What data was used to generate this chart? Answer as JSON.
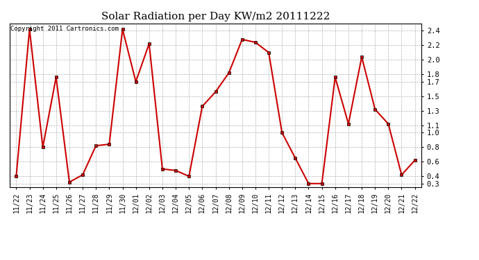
{
  "title": "Solar Radiation per Day KW/m2 20111222",
  "copyright": "Copyright 2011 Cartronics.com",
  "labels": [
    "11/22",
    "11/23",
    "11/24",
    "11/25",
    "11/26",
    "11/27",
    "11/28",
    "11/29",
    "11/30",
    "12/01",
    "12/02",
    "12/03",
    "12/04",
    "12/05",
    "12/06",
    "12/07",
    "12/08",
    "12/09",
    "12/10",
    "12/11",
    "12/12",
    "12/13",
    "12/14",
    "12/15",
    "12/16",
    "12/17",
    "12/18",
    "12/19",
    "12/20",
    "12/21",
    "12/22"
  ],
  "values": [
    0.4,
    2.42,
    0.8,
    1.76,
    0.32,
    0.42,
    0.82,
    0.84,
    2.42,
    1.7,
    2.22,
    0.5,
    0.48,
    0.4,
    1.36,
    1.56,
    1.82,
    2.28,
    2.24,
    2.1,
    1.0,
    0.65,
    0.3,
    0.3,
    1.76,
    1.12,
    2.04,
    1.32,
    1.12,
    0.42,
    0.62
  ],
  "line_color": "#cc0000",
  "marker": "s",
  "marker_size": 2.5,
  "line_width": 1.5,
  "bg_color": "#ffffff",
  "plot_bg_color": "#ffffff",
  "grid_color": "#b0b0b0",
  "yticks": [
    0.3,
    0.4,
    0.6,
    0.8,
    1.0,
    1.1,
    1.3,
    1.5,
    1.7,
    1.8,
    2.0,
    2.2,
    2.4
  ],
  "ymin": 0.25,
  "ymax": 2.5,
  "title_fontsize": 11,
  "copyright_fontsize": 6.5,
  "tick_fontsize": 7,
  "ytick_fontsize": 7.5
}
